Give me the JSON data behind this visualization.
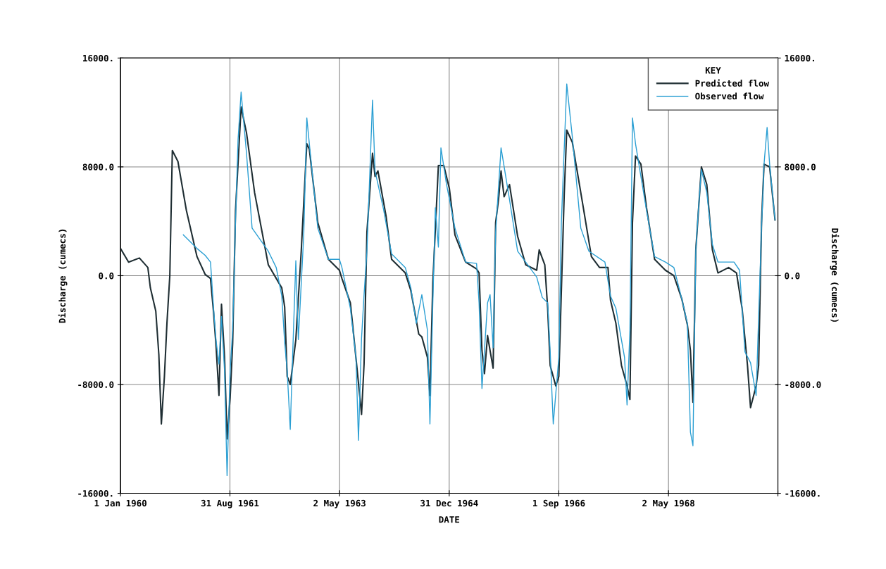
{
  "chart_data": {
    "type": "line",
    "xlabel": "DATE",
    "ylabel": "Discharge (cumecs)",
    "y2label": "Discharge (cumecs)",
    "legend_title": "KEY",
    "xlim": [
      "1960-01-01",
      "1969-12-31"
    ],
    "xticks": [
      {
        "value": "1960-01-01",
        "label": "1 Jan 1960"
      },
      {
        "value": "1961-08-31",
        "label": "31 Aug 1961"
      },
      {
        "value": "1963-05-02",
        "label": "2 May 1963"
      },
      {
        "value": "1964-12-31",
        "label": "31 Dec 1964"
      },
      {
        "value": "1966-09-01",
        "label": "1 Sep 1966"
      },
      {
        "value": "1968-05-02",
        "label": "2 May 1968"
      },
      {
        "value": "1969-12-31",
        "label": null
      }
    ],
    "ylim": [
      -16000,
      16000
    ],
    "yticks": [
      {
        "value": -16000,
        "label": "-16000."
      },
      {
        "value": -8000,
        "label": "-8000.0"
      },
      {
        "value": 0,
        "label": "0.0"
      },
      {
        "value": 8000,
        "label": "8000.0"
      },
      {
        "value": 16000,
        "label": "16000."
      }
    ],
    "y2lim": [
      -16000,
      16000
    ],
    "y2ticks": [
      {
        "value": -16000,
        "label": "-16000."
      },
      {
        "value": -8000,
        "label": "-8000.0"
      },
      {
        "value": 0,
        "label": "0.0"
      },
      {
        "value": 8000,
        "label": "8000.0"
      },
      {
        "value": 16000,
        "label": "16000."
      }
    ],
    "grid": true,
    "legend": "top right",
    "marker": "none",
    "line_style": "solid",
    "series": [
      {
        "name": "Predicted flow",
        "color": "#1f2e33",
        "x": [
          "1960-01-01",
          "1960-02-15",
          "1960-04-15",
          "1960-06-01",
          "1960-06-15",
          "1960-07-15",
          "1960-08-01",
          "1960-08-15",
          "1960-09-01",
          "1960-09-15",
          "1960-10-01",
          "1960-10-15",
          "1960-11-15",
          "1961-01-01",
          "1961-03-01",
          "1961-04-15",
          "1961-05-15",
          "1961-06-01",
          "1961-06-15",
          "1961-07-01",
          "1961-07-15",
          "1961-08-01",
          "1961-08-15",
          "1961-09-01",
          "1961-09-15",
          "1961-10-01",
          "1961-11-01",
          "1961-12-01",
          "1962-01-15",
          "1962-04-01",
          "1962-06-15",
          "1962-07-01",
          "1962-07-15",
          "1962-08-01",
          "1962-09-01",
          "1962-10-01",
          "1962-11-01",
          "1962-11-15",
          "1963-01-01",
          "1963-03-01",
          "1963-05-01",
          "1963-05-15",
          "1963-07-01",
          "1963-07-15",
          "1963-08-15",
          "1963-09-01",
          "1963-09-15",
          "1963-10-01",
          "1963-11-01",
          "1963-11-15",
          "1963-12-01",
          "1964-01-15",
          "1964-02-15",
          "1964-05-01",
          "1964-06-01",
          "1964-07-15",
          "1964-08-01",
          "1964-09-01",
          "1964-09-15",
          "1964-10-01",
          "1964-11-01",
          "1964-12-01",
          "1965-01-01",
          "1965-02-01",
          "1965-04-01",
          "1965-06-01",
          "1965-06-15",
          "1965-07-01",
          "1965-07-15",
          "1965-08-01",
          "1965-08-15",
          "1965-09-01",
          "1965-09-15",
          "1965-10-01",
          "1965-10-15",
          "1965-11-01",
          "1965-12-01",
          "1966-01-15",
          "1966-03-01",
          "1966-05-01",
          "1966-05-15",
          "1966-06-15",
          "1966-07-01",
          "1966-07-15",
          "1966-08-15",
          "1966-09-01",
          "1966-10-01",
          "1966-10-15",
          "1966-11-15",
          "1967-01-15",
          "1967-03-01",
          "1967-04-15",
          "1967-06-01",
          "1967-06-15",
          "1967-07-15",
          "1967-08-15",
          "1967-09-15",
          "1967-10-01",
          "1967-10-15",
          "1967-11-01",
          "1967-12-01",
          "1968-01-01",
          "1968-02-15",
          "1968-04-15",
          "1968-06-01",
          "1968-07-15",
          "1968-08-15",
          "1968-09-01",
          "1968-09-15",
          "1968-10-01",
          "1968-11-01",
          "1968-12-01",
          "1969-01-01",
          "1969-02-01",
          "1969-04-01",
          "1969-05-15",
          "1969-06-15",
          "1969-07-15",
          "1969-08-01",
          "1969-09-01",
          "1969-09-15",
          "1969-10-01",
          "1969-10-15",
          "1969-11-15",
          "1969-12-15"
        ],
        "values": [
          2000,
          1000,
          1300,
          600,
          -900,
          -2600,
          -5800,
          -10900,
          -7400,
          -3500,
          0,
          9200,
          8400,
          4800,
          1400,
          100,
          -200,
          -2700,
          -5200,
          -8800,
          -2100,
          -6000,
          -12000,
          -9000,
          -5000,
          4800,
          12400,
          10500,
          6100,
          800,
          -900,
          -2300,
          -7400,
          -8000,
          -4700,
          1800,
          9700,
          9300,
          3900,
          1200,
          400,
          -200,
          -2000,
          -3800,
          -7900,
          -10200,
          -6500,
          3200,
          9000,
          7300,
          7700,
          4400,
          1200,
          200,
          -1100,
          -4300,
          -4500,
          -6000,
          -8800,
          -500,
          8100,
          8100,
          6400,
          3000,
          1000,
          500,
          200,
          -5500,
          -7200,
          -4400,
          -5500,
          -6800,
          3900,
          5600,
          7700,
          5800,
          6700,
          2900,
          800,
          400,
          1900,
          800,
          -2400,
          -6600,
          -8100,
          -7400,
          6000,
          10700,
          9800,
          5000,
          1400,
          600,
          600,
          -1800,
          -3500,
          -6600,
          -8100,
          -9100,
          3900,
          8800,
          8200,
          5000,
          1200,
          400,
          0,
          -1700,
          -3600,
          -5500,
          -9300,
          1900,
          8000,
          6700,
          1900,
          200,
          600,
          200,
          -2400,
          -6600,
          -9700,
          -8100,
          -6600,
          3900,
          8200,
          8000,
          4100
        ]
      },
      {
        "name": "Observed flow",
        "color": "#2b9fd3",
        "x": [
          "1960-12-15",
          "1961-03-01",
          "1961-04-15",
          "1961-05-15",
          "1961-06-01",
          "1961-06-15",
          "1961-07-01",
          "1961-07-15",
          "1961-08-01",
          "1961-08-15",
          "1961-09-01",
          "1961-09-15",
          "1961-10-01",
          "1961-10-15",
          "1961-11-01",
          "1961-12-01",
          "1962-01-01",
          "1962-04-01",
          "1962-05-15",
          "1962-06-15",
          "1962-07-01",
          "1962-07-15",
          "1962-08-01",
          "1962-08-15",
          "1962-09-01",
          "1962-09-15",
          "1962-10-15",
          "1962-11-01",
          "1962-11-15",
          "1963-01-01",
          "1963-03-01",
          "1963-05-01",
          "1963-05-15",
          "1963-07-01",
          "1963-08-01",
          "1963-08-15",
          "1963-09-01",
          "1963-09-15",
          "1963-10-01",
          "1963-11-01",
          "1963-11-15",
          "1964-01-01",
          "1964-02-15",
          "1964-05-01",
          "1964-06-01",
          "1964-07-01",
          "1964-08-01",
          "1964-09-01",
          "1964-09-15",
          "1964-10-01",
          "1964-10-15",
          "1964-11-01",
          "1964-11-15",
          "1964-12-15",
          "1965-02-01",
          "1965-04-01",
          "1965-06-01",
          "1965-06-15",
          "1965-07-01",
          "1965-08-01",
          "1965-08-15",
          "1965-09-01",
          "1965-09-15",
          "1965-10-15",
          "1965-12-01",
          "1966-01-15",
          "1966-05-01",
          "1966-06-01",
          "1966-07-01",
          "1966-07-15",
          "1966-08-01",
          "1966-09-01",
          "1966-09-15",
          "1966-10-15",
          "1966-11-15",
          "1967-01-01",
          "1967-02-15",
          "1967-05-15",
          "1967-06-15",
          "1967-07-15",
          "1967-09-01",
          "1967-09-15",
          "1967-10-01",
          "1967-10-15",
          "1967-11-01",
          "1968-01-01",
          "1968-02-15",
          "1968-04-15",
          "1968-06-01",
          "1968-07-15",
          "1968-08-15",
          "1968-09-01",
          "1968-09-15",
          "1968-10-01",
          "1968-10-15",
          "1968-11-01",
          "1968-12-01",
          "1969-01-01",
          "1969-02-01",
          "1969-05-01",
          "1969-06-01",
          "1969-07-01",
          "1969-08-01",
          "1969-09-01",
          "1969-09-15",
          "1969-10-01",
          "1969-10-15",
          "1969-11-01",
          "1969-11-15",
          "1969-12-15"
        ],
        "values": [
          3000,
          2000,
          1500,
          1000,
          -2400,
          -4800,
          -6500,
          -3000,
          -7000,
          -14700,
          -7000,
          -4000,
          4000,
          10000,
          13500,
          9000,
          3500,
          1800,
          600,
          -1500,
          -4900,
          -7000,
          -11300,
          -5600,
          1100,
          -4700,
          3000,
          11600,
          9700,
          3500,
          1200,
          1200,
          600,
          -2400,
          -6000,
          -12100,
          -4600,
          -1400,
          1800,
          12900,
          7700,
          4900,
          1600,
          600,
          -900,
          -3500,
          -1400,
          -4000,
          -10900,
          -2000,
          5000,
          2100,
          9400,
          6800,
          3500,
          1000,
          900,
          -2000,
          -8300,
          -2000,
          -1400,
          -5300,
          3200,
          9400,
          5600,
          1800,
          -100,
          -1600,
          -2000,
          -5600,
          -10900,
          -6000,
          3900,
          14100,
          10200,
          3500,
          1800,
          1000,
          -1500,
          -2400,
          -6000,
          -9500,
          -4000,
          11600,
          9700,
          4800,
          1400,
          1000,
          600,
          -1700,
          -3500,
          -11500,
          -12500,
          1900,
          4800,
          7800,
          6100,
          2300,
          1000,
          1000,
          400,
          -5600,
          -6400,
          -8800,
          -3000,
          3500,
          8200,
          10900,
          8200,
          4100
        ]
      }
    ]
  }
}
